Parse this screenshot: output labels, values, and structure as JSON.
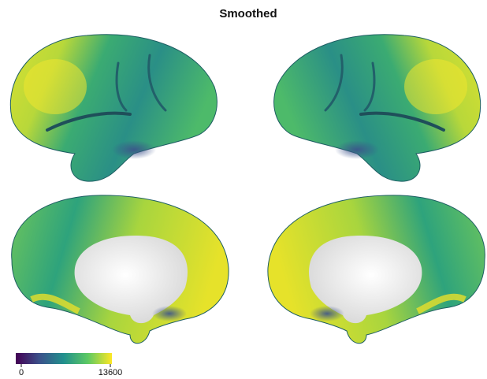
{
  "title": "Smoothed",
  "colorbar": {
    "ticks": [
      0,
      13600
    ],
    "colors": [
      "#440154",
      "#3b528b",
      "#21908d",
      "#5dc963",
      "#fde725"
    ]
  }
}
